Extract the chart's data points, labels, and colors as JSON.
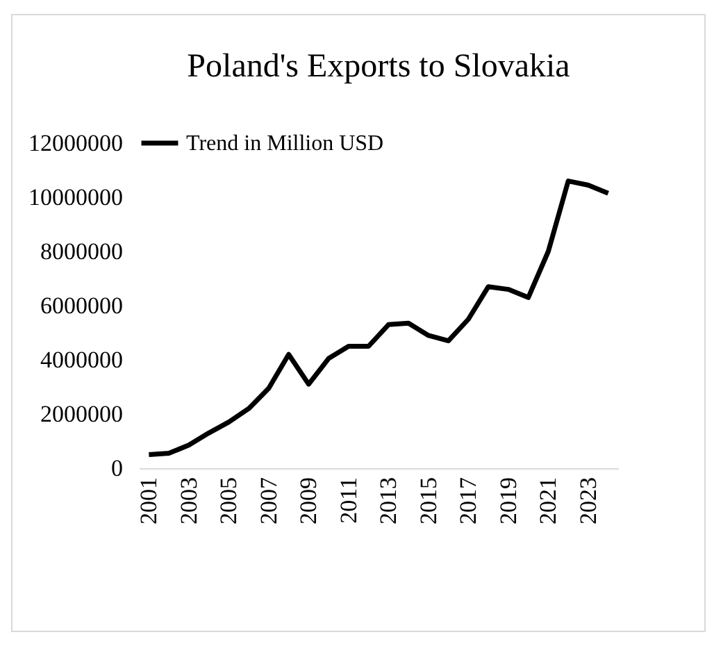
{
  "chart_data": {
    "type": "line",
    "title": "Poland's Exports to Slovakia",
    "categories": [
      "2001",
      null,
      "2003",
      null,
      "2005",
      null,
      "2007",
      null,
      "2009",
      null,
      "2011",
      null,
      "2013",
      null,
      "2015",
      null,
      "2017",
      null,
      "2019",
      null,
      "2021",
      null,
      "2023",
      null
    ],
    "series": [
      {
        "name": "Trend in Million USD",
        "color": "#000000",
        "values": [
          500000,
          550000,
          850000,
          1300000,
          1700000,
          2200000,
          2950000,
          4200000,
          3100000,
          4050000,
          4500000,
          4500000,
          5300000,
          5350000,
          4900000,
          4700000,
          5500000,
          6700000,
          6600000,
          6300000,
          8000000,
          10600000,
          10450000,
          10150000
        ]
      }
    ],
    "ylim": [
      0,
      12000000
    ],
    "yticks": [
      0,
      2000000,
      4000000,
      6000000,
      8000000,
      10000000,
      12000000
    ],
    "grid": false,
    "legend": "top",
    "marker": "none",
    "line_style": "solid"
  }
}
